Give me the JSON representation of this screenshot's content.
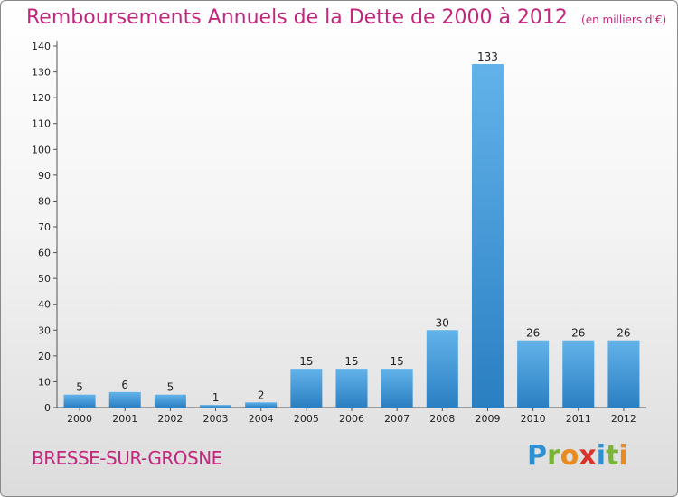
{
  "title": "Remboursements Annuels de la Dette de 2000 à 2012",
  "subtitle": "(en milliers d'€)",
  "commune": "BRESSE-SUR-GROSNE",
  "logo": {
    "letters": [
      {
        "ch": "P",
        "color": "#2f8fd0"
      },
      {
        "ch": "r",
        "color": "#7ab53a"
      },
      {
        "ch": "o",
        "color": "#e98b1e"
      },
      {
        "ch": "x",
        "color": "#d8342a"
      },
      {
        "ch": "i",
        "color": "#2f8fd0"
      },
      {
        "ch": "t",
        "color": "#7ab53a"
      },
      {
        "ch": "i",
        "color": "#e98b1e"
      }
    ]
  },
  "colors": {
    "bar_light": "#63b3ea",
    "bar_dark": "#2a7fc2",
    "accent": "#c2277c"
  },
  "chart_data": {
    "type": "bar",
    "title": "Remboursements Annuels de la Dette de 2000 à 2012",
    "subtitle": "(en milliers d'€)",
    "categories": [
      "2000",
      "2001",
      "2002",
      "2003",
      "2004",
      "2005",
      "2006",
      "2007",
      "2008",
      "2009",
      "2010",
      "2011",
      "2012"
    ],
    "values": [
      5,
      6,
      5,
      1,
      2,
      15,
      15,
      15,
      30,
      133,
      26,
      26,
      26
    ],
    "ylim": [
      0,
      140
    ],
    "yticks": [
      0,
      10,
      20,
      30,
      40,
      50,
      60,
      70,
      80,
      90,
      100,
      110,
      120,
      130,
      140
    ],
    "grid": false,
    "xlabel": "",
    "ylabel": ""
  }
}
